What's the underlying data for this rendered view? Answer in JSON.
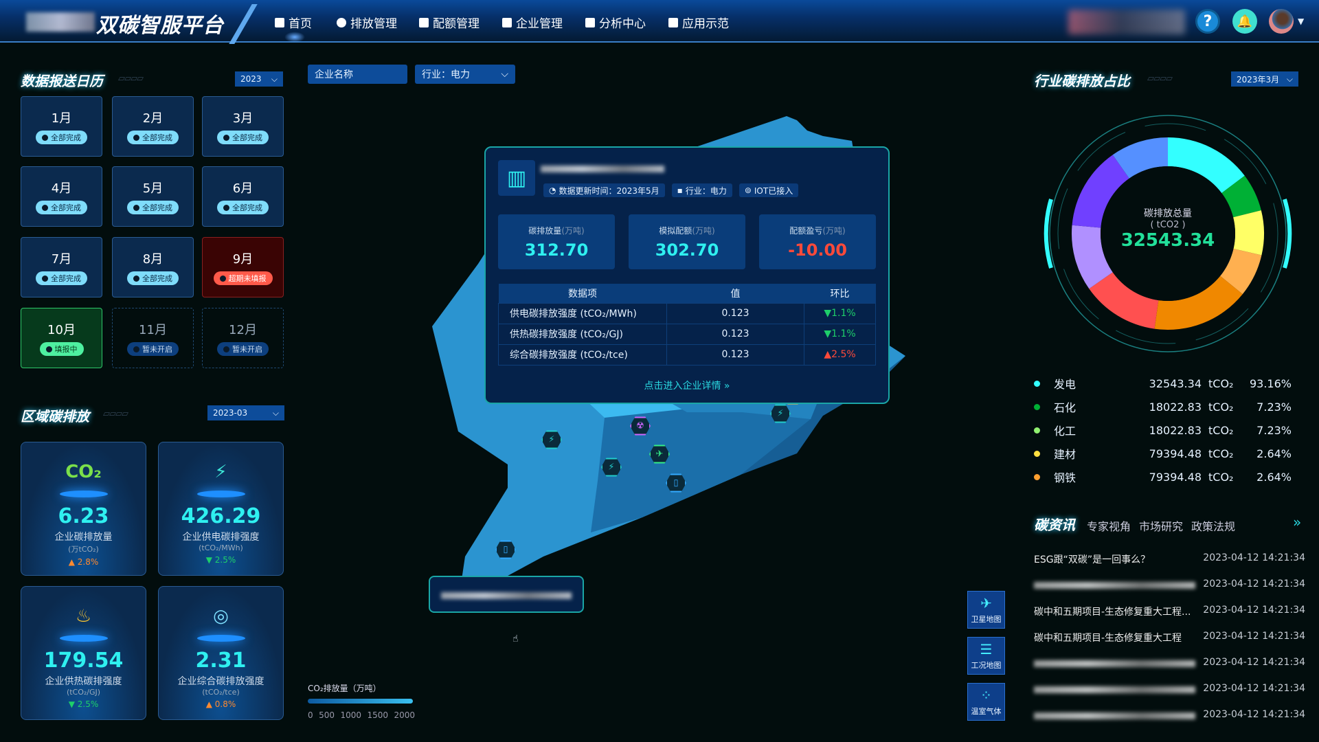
{
  "header": {
    "title": "双碳智服平台",
    "nav": [
      {
        "label": "首页",
        "icon": "home-icon"
      },
      {
        "label": "排放管理",
        "icon": "chart-icon"
      },
      {
        "label": "配额管理",
        "icon": "list-icon"
      },
      {
        "label": "企业管理",
        "icon": "monitor-icon"
      },
      {
        "label": "分析中心",
        "icon": "calculator-icon"
      },
      {
        "label": "应用示范",
        "icon": "grid-icon"
      }
    ],
    "help": "?",
    "bell": "🔔",
    "avatar_caret": "▼"
  },
  "calendar": {
    "title": "数据报送日历",
    "year": "2023",
    "months": [
      {
        "m": "1月",
        "status": "全部完成",
        "state": "done"
      },
      {
        "m": "2月",
        "status": "全部完成",
        "state": "done"
      },
      {
        "m": "3月",
        "status": "全部完成",
        "state": "done"
      },
      {
        "m": "4月",
        "status": "全部完成",
        "state": "done"
      },
      {
        "m": "5月",
        "status": "全部完成",
        "state": "done"
      },
      {
        "m": "6月",
        "status": "全部完成",
        "state": "done"
      },
      {
        "m": "7月",
        "status": "全部完成",
        "state": "done"
      },
      {
        "m": "8月",
        "status": "全部完成",
        "state": "done"
      },
      {
        "m": "9月",
        "status": "超期未填报",
        "state": "overdue"
      },
      {
        "m": "10月",
        "status": "填报中",
        "state": "filling"
      },
      {
        "m": "11月",
        "status": "暂未开启",
        "state": "closed"
      },
      {
        "m": "12月",
        "status": "暂未开启",
        "state": "closed"
      }
    ]
  },
  "region": {
    "title": "区域碳排放",
    "month": "2023-03",
    "cards": [
      {
        "value": "6.23",
        "label": "企业碳排放量",
        "unit": "(万tCO₂)",
        "change": "▲ 2.8%",
        "dir": "up",
        "icon": "co2-cloud-icon",
        "glyph": "CO₂",
        "color": "#7be04a"
      },
      {
        "value": "426.29",
        "label": "企业供电碳排强度",
        "unit": "(tCO₂/MWh)",
        "change": "▼ 2.5%",
        "dir": "down",
        "icon": "plug-icon",
        "glyph": "⚡",
        "color": "#3ee8d8"
      },
      {
        "value": "179.54",
        "label": "企业供热碳排强度",
        "unit": "(tCO₂/GJ)",
        "change": "▼ 2.5%",
        "dir": "down",
        "icon": "heater-icon",
        "glyph": "♨",
        "color": "#ffc830"
      },
      {
        "value": "2.31",
        "label": "企业综合碳排放强度",
        "unit": "(tCO₂/tce)",
        "change": "▲ 0.8%",
        "dir": "up",
        "icon": "target-icon",
        "glyph": "◎",
        "color": "#7fe0ff"
      }
    ]
  },
  "filters": {
    "company_placeholder": "企业名称",
    "industry": "行业：电力"
  },
  "popup": {
    "tags": [
      "数据更新时间：2023年5月",
      "行业：电力",
      "IOT已接入"
    ],
    "kpis": [
      {
        "label": "碳排放量",
        "unit": "(万吨)",
        "value": "312.70",
        "color": "#2ff0f0"
      },
      {
        "label": "模拟配额",
        "unit": "(万吨)",
        "value": "302.70",
        "color": "#2ff0f0"
      },
      {
        "label": "配额盈亏",
        "unit": "(万吨)",
        "value": "-10.00",
        "color": "#ff4a3a"
      }
    ],
    "table": {
      "headers": [
        "数据项",
        "值",
        "环比"
      ],
      "rows": [
        {
          "item": "供电碳排放强度 (tCO₂/MWh)",
          "value": "0.123",
          "change": "▼1.1%",
          "dir": "down"
        },
        {
          "item": "供热碳排放强度 (tCO₂/GJ)",
          "value": "0.123",
          "change": "▼1.1%",
          "dir": "down"
        },
        {
          "item": "综合碳排放强度 (tCO₂/tce)",
          "value": "0.123",
          "change": "▲2.5%",
          "dir": "up"
        }
      ]
    },
    "link": "点击进入企业详情 »"
  },
  "map_legend": {
    "title": "CO₂排放量（万吨）",
    "ticks": [
      "0",
      "500",
      "1000",
      "1500",
      "2000"
    ]
  },
  "map_icons": [
    "wrench-icon",
    "bolt-icon",
    "bolt-icon",
    "factory-icon",
    "bolt-icon",
    "bolt-icon",
    "radiation-icon",
    "plane-icon",
    "bolt-icon",
    "document-icon",
    "document-icon"
  ],
  "industry": {
    "title": "行业碳排放占比",
    "month": "2023年3月",
    "center_label": "碳排放总量",
    "center_unit": "( tCO2 )",
    "total": "32543.34",
    "ring_segments": [
      {
        "color": "#33ffff",
        "share": 53
      },
      {
        "color": "#00b035",
        "share": 23
      },
      {
        "color": "#ffff66",
        "share": 27
      },
      {
        "color": "#ffb050",
        "share": 26
      },
      {
        "color": "#f08800",
        "share": 59
      },
      {
        "color": "#ff5050",
        "share": 47
      },
      {
        "color": "#b090ff",
        "share": 40
      },
      {
        "color": "#7040ff",
        "share": 50
      },
      {
        "color": "#5590ff",
        "share": 35
      }
    ],
    "legend": [
      {
        "name": "发电",
        "value": "32543.34",
        "unit": "tCO₂",
        "pct": "93.16%",
        "color": "#33ffff"
      },
      {
        "name": "石化",
        "value": "18022.83",
        "unit": "tCO₂",
        "pct": "7.23%",
        "color": "#00b035"
      },
      {
        "name": "化工",
        "value": "18022.83",
        "unit": "tCO₂",
        "pct": "7.23%",
        "color": "#90f070"
      },
      {
        "name": "建材",
        "value": "79394.48",
        "unit": "tCO₂",
        "pct": "2.64%",
        "color": "#ffe040"
      },
      {
        "name": "钢铁",
        "value": "79394.48",
        "unit": "tCO₂",
        "pct": "2.64%",
        "color": "#ffa030"
      }
    ]
  },
  "news": {
    "title": "碳资讯",
    "tabs": [
      "专家视角",
      "市场研究",
      "政策法规"
    ],
    "more": "»",
    "items": [
      {
        "title": "ESG跟“双碳”是一回事么？",
        "time": "2023-04-12 14:21:34"
      },
      {
        "title": "",
        "time": "2023-04-12 14:21:34"
      },
      {
        "title": "碳中和五期项目-生态修复重大工程...",
        "time": "2023-04-12 14:21:34"
      },
      {
        "title": "碳中和五期项目-生态修复重大工程",
        "time": "2023-04-12 14:21:34"
      },
      {
        "title": "",
        "time": "2023-04-12 14:21:34"
      },
      {
        "title": "",
        "time": "2023-04-12 14:21:34"
      },
      {
        "title": "",
        "time": "2023-04-12 14:21:34"
      }
    ]
  },
  "side_buttons": [
    {
      "label": "卫星地图",
      "icon": "satellite-icon",
      "glyph": "✈"
    },
    {
      "label": "工况地图",
      "icon": "server-icon",
      "glyph": "☰"
    },
    {
      "label": "温室气体",
      "icon": "bubbles-icon",
      "glyph": "⁘"
    }
  ]
}
